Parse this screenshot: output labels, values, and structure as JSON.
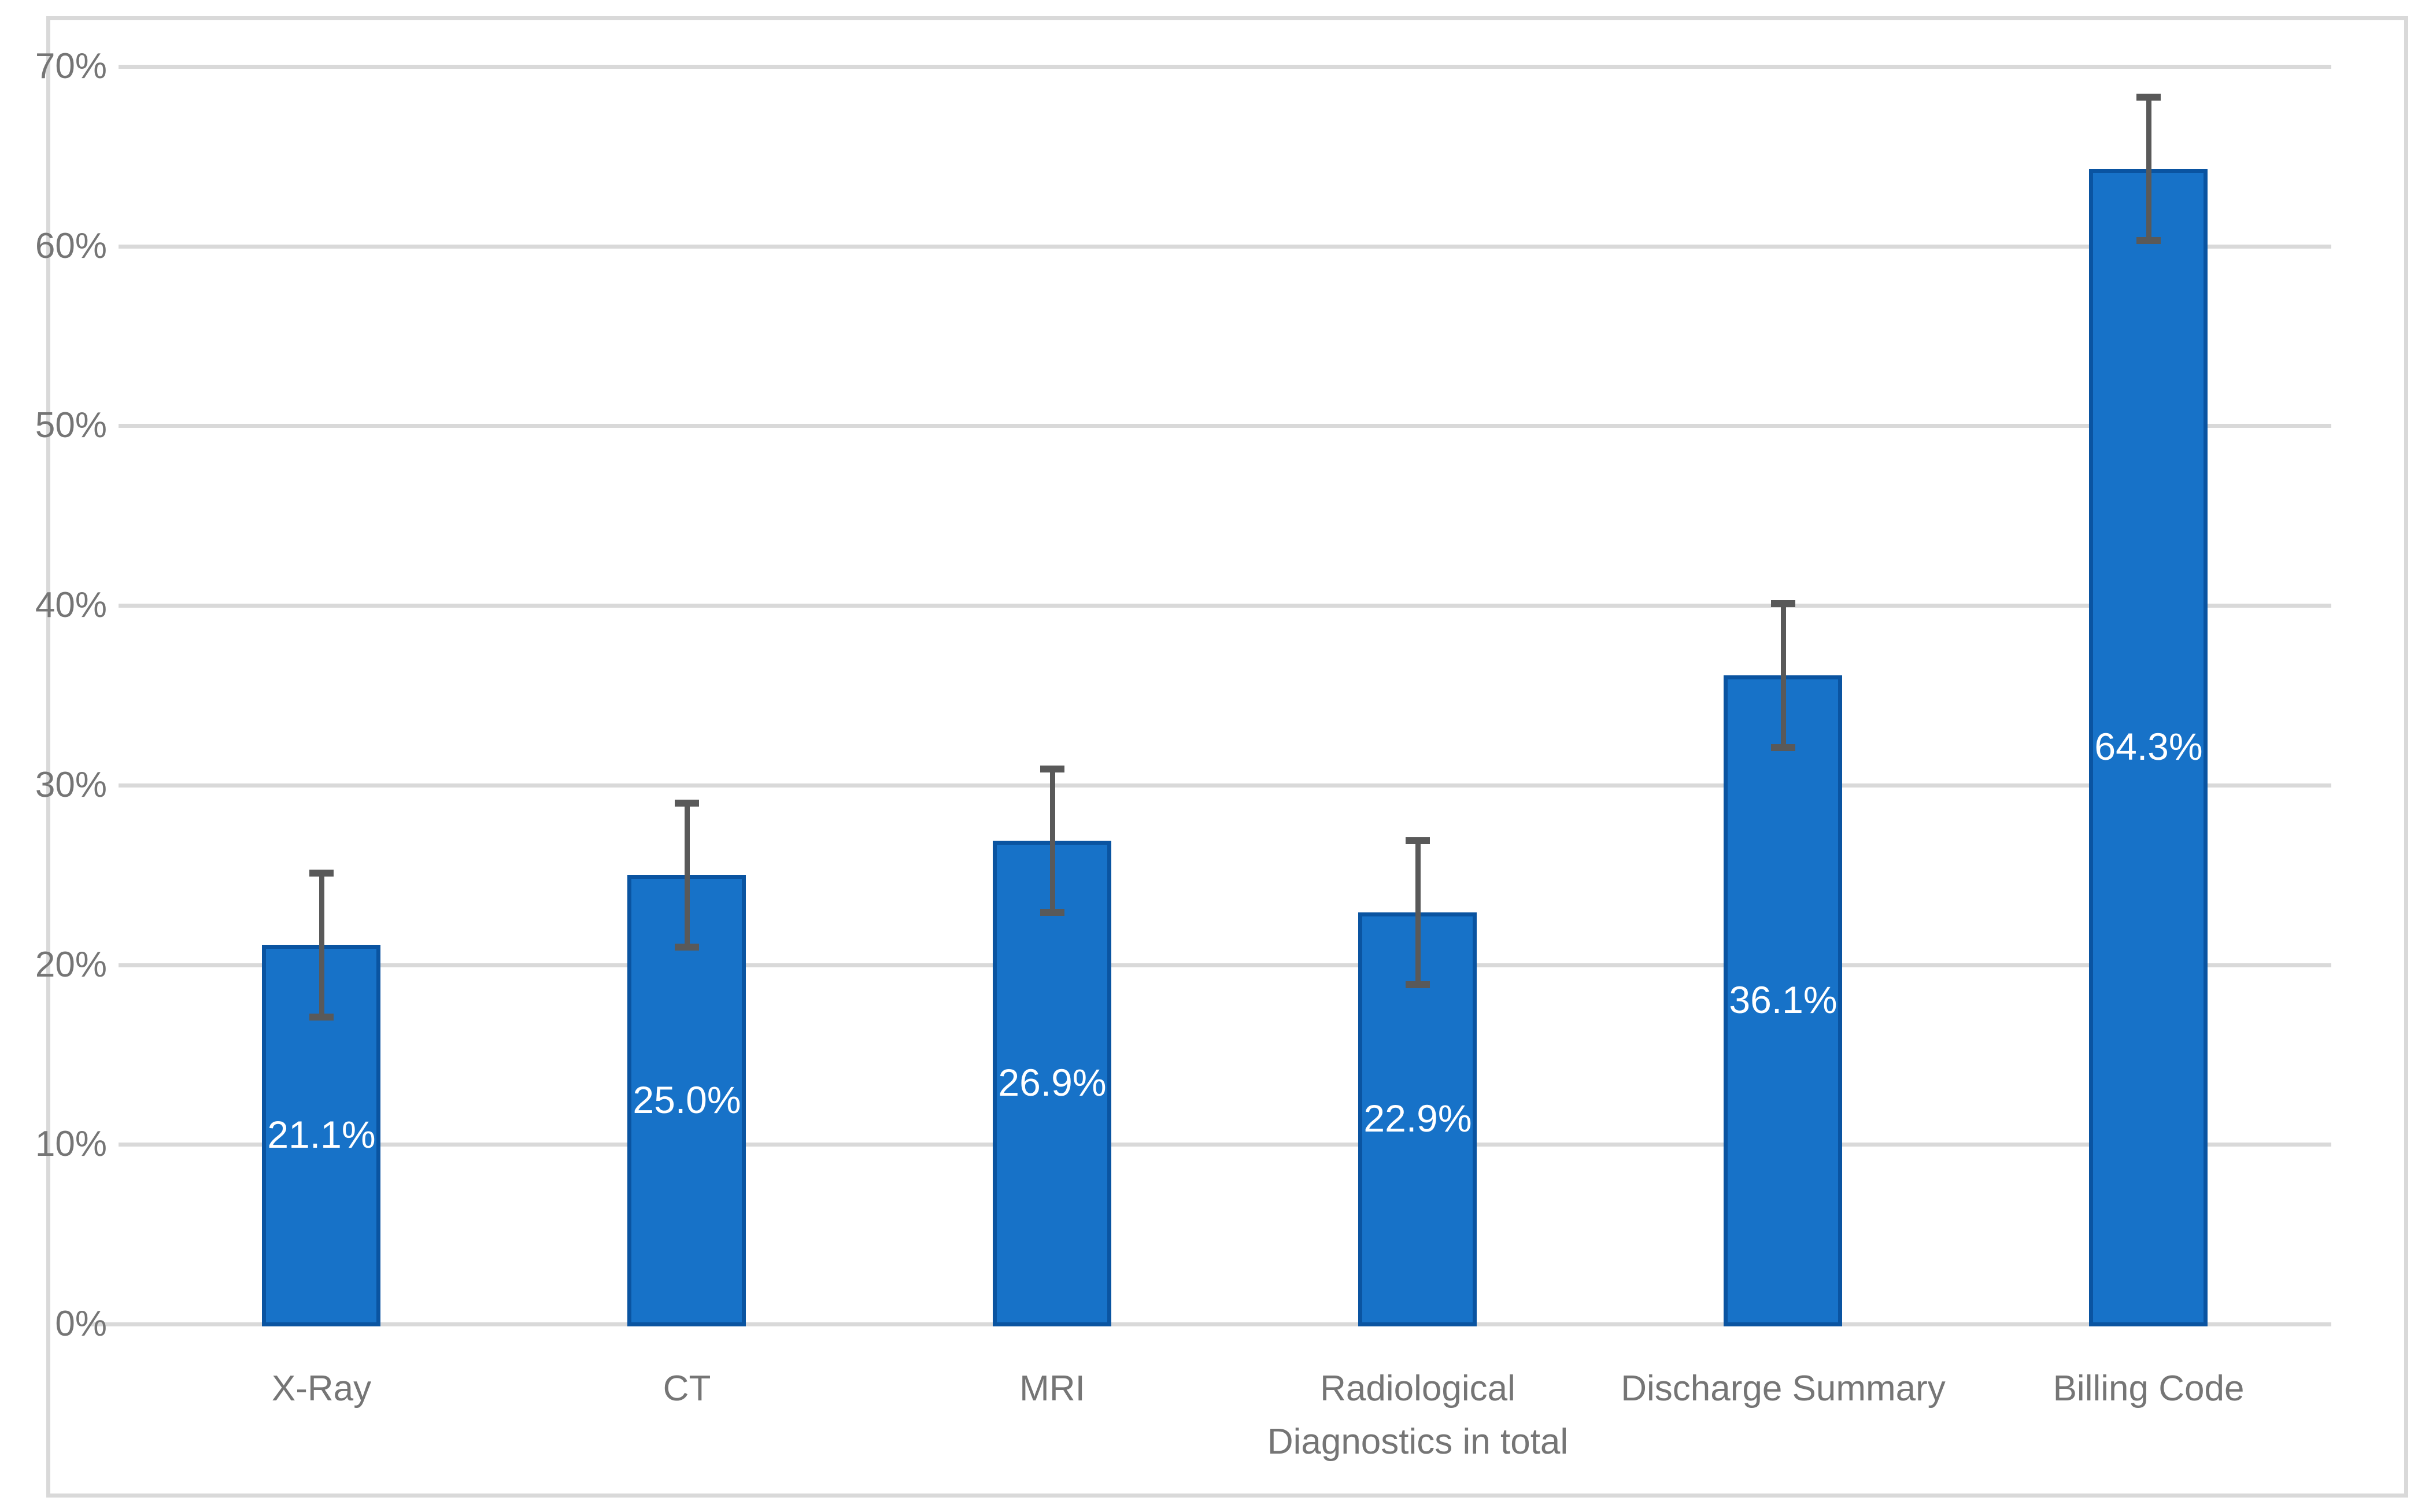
{
  "chart_data": {
    "type": "bar",
    "title": "",
    "xlabel": "",
    "ylabel": "",
    "categories": [
      "X-Ray",
      "CT",
      "MRI",
      "Radiological Diagnostics in total",
      "Discharge Summary",
      "Billing Code"
    ],
    "values": [
      21.1,
      25.0,
      26.9,
      22.9,
      36.1,
      64.3
    ],
    "data_labels": [
      "21.1%",
      "25.0%",
      "26.9%",
      "22.9%",
      "36.1%",
      "64.3%"
    ],
    "error_bars": {
      "type": "symmetric",
      "value": 4.0,
      "upper": [
        25.1,
        29.0,
        30.9,
        26.9,
        40.1,
        68.3
      ],
      "lower": [
        17.1,
        21.0,
        22.9,
        18.9,
        32.1,
        60.3
      ]
    },
    "ylim": [
      0,
      70
    ],
    "y_tick_step": 10,
    "y_ticks": [
      "0%",
      "10%",
      "20%",
      "30%",
      "40%",
      "50%",
      "60%",
      "70%"
    ],
    "grid": true,
    "legend": false,
    "colors": {
      "bar_fill": "#1772C8",
      "bar_border": "#0A54A1",
      "error_bar": "#595959",
      "gridline": "#D9D9D9",
      "axis_text": "#757575",
      "data_label": "#FFFFFF",
      "background": "#FFFFFF"
    }
  }
}
